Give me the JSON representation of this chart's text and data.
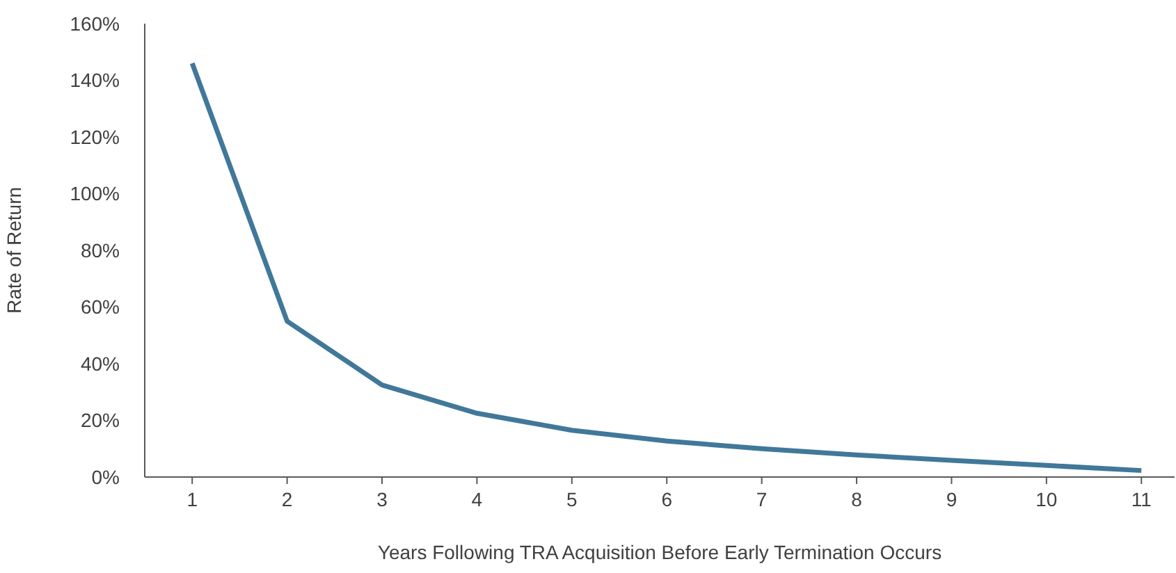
{
  "chart_data": {
    "type": "line",
    "xlabel": "Years Following TRA Acquisition Before Early Termination Occurs",
    "ylabel": "Rate of Return",
    "x": [
      1,
      2,
      3,
      4,
      5,
      6,
      7,
      8,
      9,
      10,
      11
    ],
    "series": [
      {
        "color": "#41789a",
        "values": [
          146,
          55,
          32.5,
          22.5,
          16.5,
          12.7,
          10,
          7.8,
          5.9,
          4.1,
          2.3
        ]
      }
    ],
    "xlim": [
      0.5,
      11.35
    ],
    "xticks": [
      1,
      2,
      3,
      4,
      5,
      6,
      7,
      8,
      9,
      10,
      11
    ],
    "ylim": [
      0,
      160
    ],
    "yticks": [
      {
        "value": 0,
        "label": "0%"
      },
      {
        "value": 20,
        "label": "20%"
      },
      {
        "value": 40,
        "label": "40%"
      },
      {
        "value": 60,
        "label": "60%"
      },
      {
        "value": 80,
        "label": "80%"
      },
      {
        "value": 100,
        "label": "100%"
      },
      {
        "value": 120,
        "label": "120%"
      },
      {
        "value": 140,
        "label": "140%"
      },
      {
        "value": 160,
        "label": "160%"
      }
    ],
    "grid": false,
    "legend": false,
    "marker": "none",
    "line_style": "solid"
  }
}
